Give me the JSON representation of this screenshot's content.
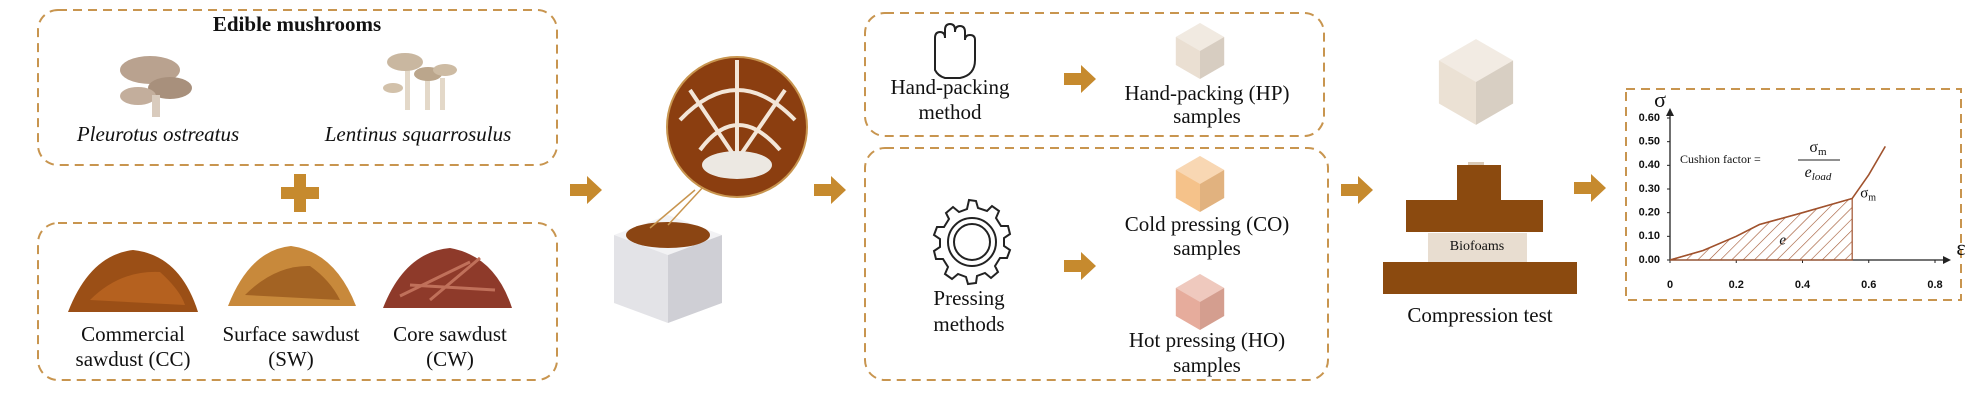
{
  "mushrooms": {
    "title": "Edible mushrooms",
    "species": [
      "Pleurotus ostreatus",
      "Lentinus squarrosulus"
    ]
  },
  "sawdust": [
    {
      "line1": "Commercial",
      "line2": "sawdust (CC)"
    },
    {
      "line1": "Surface sawdust",
      "line2": "(SW)"
    },
    {
      "line1": "Core sawdust",
      "line2": "(CW)"
    }
  ],
  "hand_packing": {
    "method": [
      "Hand-packing",
      "method"
    ],
    "sample": [
      "Hand-packing (HP)",
      "samples"
    ]
  },
  "pressing": {
    "method": [
      "Pressing",
      "methods"
    ],
    "samples": [
      {
        "line1": "Cold pressing (CO)",
        "line2": "samples"
      },
      {
        "line1": "Hot pressing (HO)",
        "line2": "samples"
      }
    ]
  },
  "compression": {
    "title": "Compression test",
    "sample_label": "Biofoams"
  },
  "cushion_chart": {
    "type": "line",
    "color": "#a0522d",
    "y_label": "σ",
    "x_label": "ε",
    "formula": {
      "text": "Cushion factor =",
      "numerator": "σ",
      "numerator_sub": "m",
      "denominator": "e",
      "denominator_sub": "load"
    },
    "peak_label": "σ",
    "peak_label_sub": "m",
    "area_label": "e",
    "x": [
      0,
      0.1,
      0.2,
      0.27,
      0.4,
      0.55,
      0.6,
      0.65
    ],
    "values": [
      0,
      0.04,
      0.1,
      0.15,
      0.2,
      0.26,
      0.36,
      0.48
    ],
    "xlim": [
      0,
      0.8
    ],
    "ylim": [
      0,
      0.6
    ],
    "xticks": [
      0,
      0.2,
      0.4,
      0.6,
      0.8
    ],
    "yticks": [
      {
        "value": 0,
        "label": "0.00"
      },
      {
        "value": 0.1,
        "label": "0.10"
      },
      {
        "value": 0.2,
        "label": "0.20"
      },
      {
        "value": 0.3,
        "label": "0.30"
      },
      {
        "value": 0.4,
        "label": "0.40"
      },
      {
        "value": 0.5,
        "label": "0.50"
      },
      {
        "value": 0.6,
        "label": "0.60"
      }
    ]
  }
}
